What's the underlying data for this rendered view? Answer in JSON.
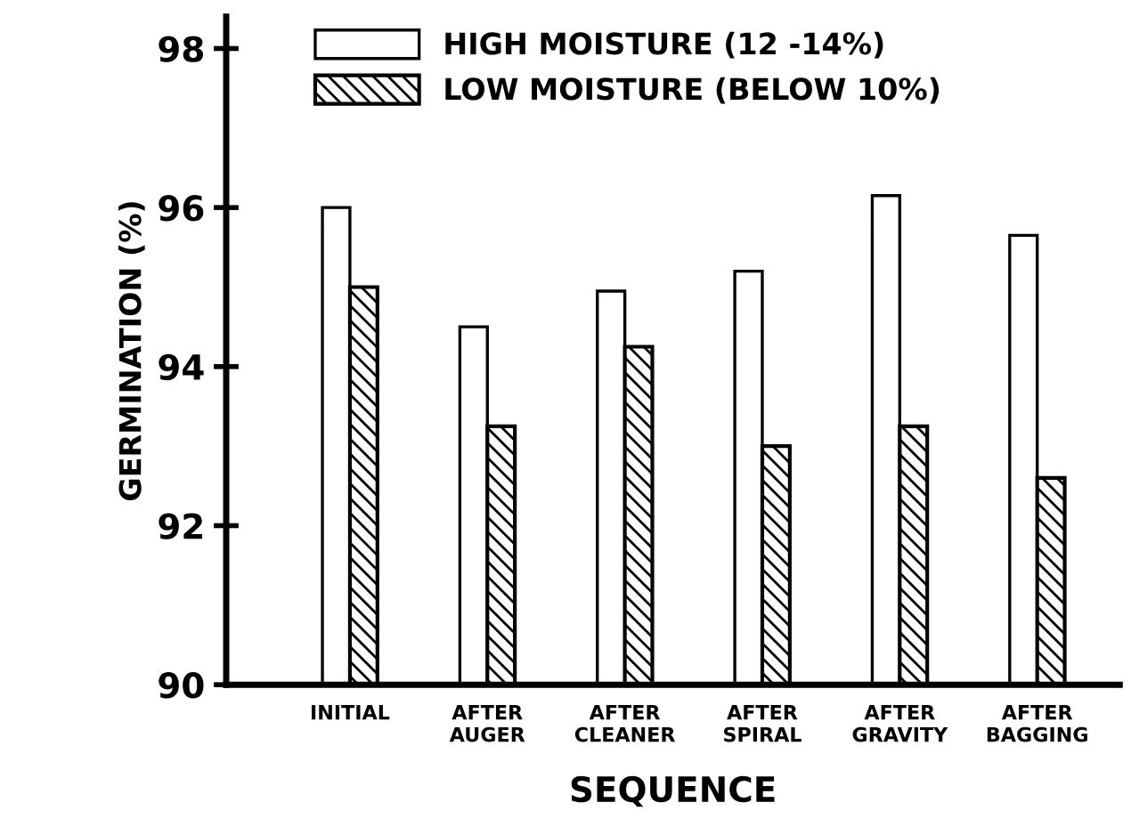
{
  "chart_data": {
    "type": "bar",
    "xlabel": "SEQUENCE",
    "ylabel": "GERMINATION (%)",
    "categories": [
      "INITIAL",
      "AFTER\nAUGER",
      "AFTER\nCLEANER",
      "AFTER\nSPIRAL",
      "AFTER\nGRAVITY",
      "AFTER\nBAGGING"
    ],
    "series": [
      {
        "name": "HIGH MOISTURE (12 -14%)",
        "color": "#ffffff",
        "values": [
          96.0,
          94.5,
          94.95,
          95.2,
          96.15,
          95.65
        ]
      },
      {
        "name": "LOW MOISTURE (BELOW 10%)",
        "color": "#000000",
        "values": [
          95.0,
          93.25,
          94.25,
          93.0,
          93.25,
          92.6
        ]
      }
    ],
    "ylim": [
      90,
      98.4
    ],
    "yticks": [
      90,
      92,
      94,
      96,
      98
    ],
    "grid": false,
    "legend": "top"
  }
}
